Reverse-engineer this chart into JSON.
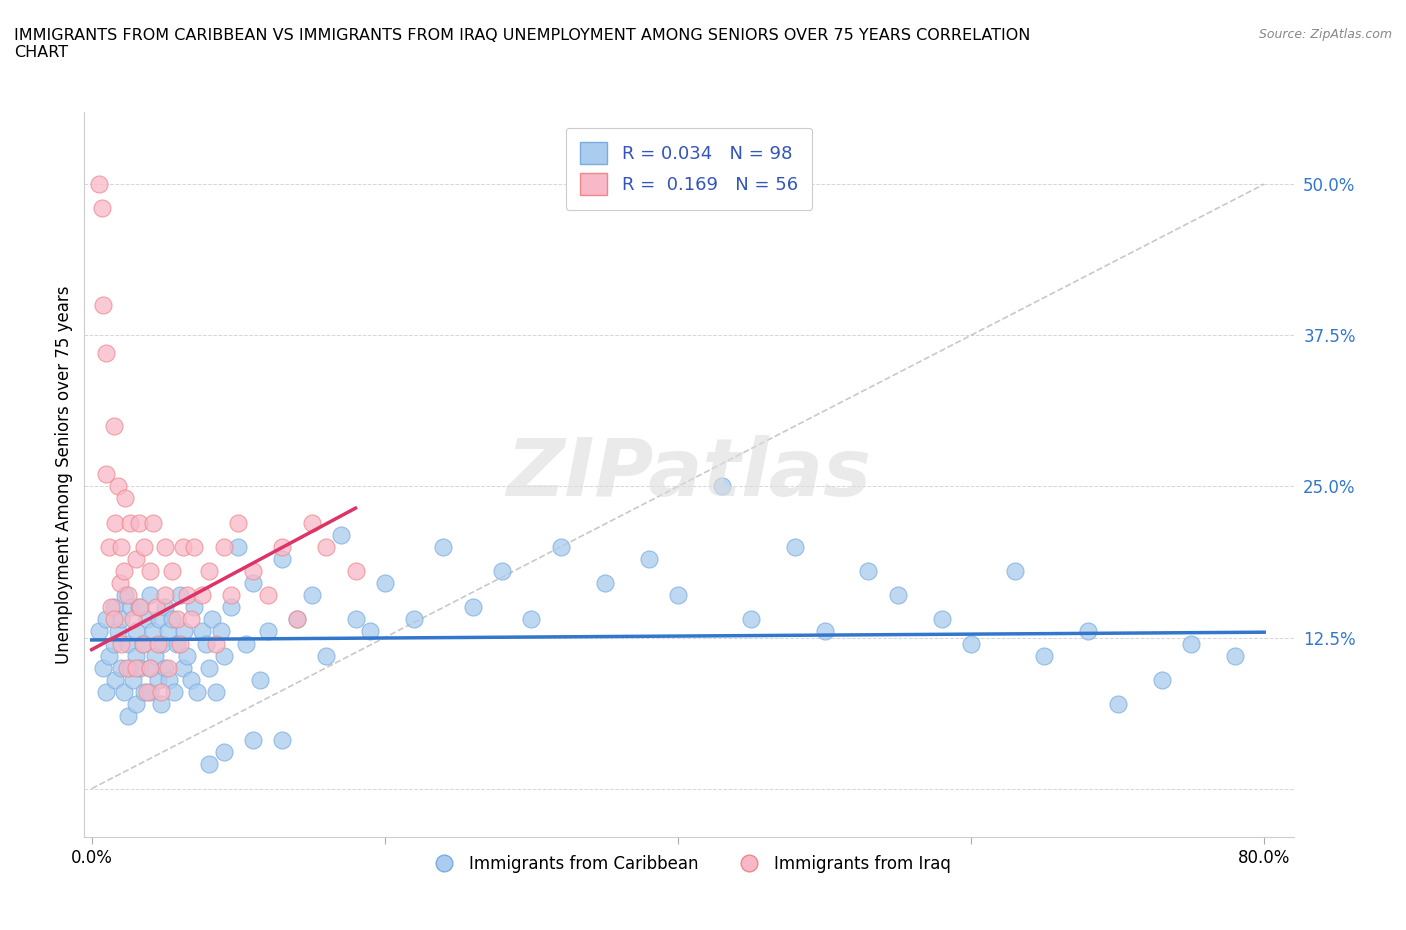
{
  "title": "IMMIGRANTS FROM CARIBBEAN VS IMMIGRANTS FROM IRAQ UNEMPLOYMENT AMONG SENIORS OVER 75 YEARS CORRELATION\nCHART",
  "source": "Source: ZipAtlas.com",
  "ylabel": "Unemployment Among Seniors over 75 years",
  "xlim": [
    -0.005,
    0.82
  ],
  "ylim": [
    -0.04,
    0.56
  ],
  "xticks": [
    0.0,
    0.8
  ],
  "xticklabels": [
    "0.0%",
    "80.0%"
  ],
  "yticks": [
    0.0,
    0.125,
    0.25,
    0.375,
    0.5
  ],
  "yticklabels": [
    "",
    "12.5%",
    "25.0%",
    "37.5%",
    "50.0%"
  ],
  "caribbean_color": "#aaccee",
  "iraq_color": "#f8b8c8",
  "caribbean_edge": "#7aace0",
  "iraq_edge": "#ee8888",
  "trend_caribbean_color": "#3377cc",
  "trend_iraq_color": "#dd3366",
  "R_caribbean": 0.034,
  "N_caribbean": 98,
  "R_iraq": 0.169,
  "N_iraq": 56,
  "legend_text_color": "#3355bb",
  "yaxis_label_color": "#3377cc",
  "background_color": "#ffffff",
  "watermark": "ZIPatlas",
  "carib_x": [
    0.005,
    0.008,
    0.01,
    0.01,
    0.012,
    0.015,
    0.015,
    0.016,
    0.018,
    0.02,
    0.02,
    0.022,
    0.023,
    0.025,
    0.025,
    0.026,
    0.027,
    0.028,
    0.03,
    0.03,
    0.03,
    0.032,
    0.033,
    0.035,
    0.036,
    0.038,
    0.04,
    0.04,
    0.04,
    0.042,
    0.043,
    0.045,
    0.046,
    0.047,
    0.048,
    0.05,
    0.05,
    0.052,
    0.053,
    0.055,
    0.056,
    0.058,
    0.06,
    0.062,
    0.063,
    0.065,
    0.068,
    0.07,
    0.072,
    0.075,
    0.078,
    0.08,
    0.082,
    0.085,
    0.088,
    0.09,
    0.095,
    0.1,
    0.105,
    0.11,
    0.115,
    0.12,
    0.13,
    0.14,
    0.15,
    0.16,
    0.17,
    0.18,
    0.19,
    0.2,
    0.22,
    0.24,
    0.26,
    0.28,
    0.3,
    0.32,
    0.35,
    0.38,
    0.4,
    0.43,
    0.45,
    0.48,
    0.5,
    0.53,
    0.55,
    0.58,
    0.6,
    0.63,
    0.65,
    0.68,
    0.7,
    0.73,
    0.75,
    0.78,
    0.08,
    0.09,
    0.11,
    0.13
  ],
  "carib_y": [
    0.13,
    0.1,
    0.14,
    0.08,
    0.11,
    0.12,
    0.15,
    0.09,
    0.13,
    0.1,
    0.14,
    0.08,
    0.16,
    0.12,
    0.06,
    0.1,
    0.15,
    0.09,
    0.13,
    0.11,
    0.07,
    0.15,
    0.1,
    0.12,
    0.08,
    0.14,
    0.16,
    0.1,
    0.08,
    0.13,
    0.11,
    0.09,
    0.14,
    0.07,
    0.12,
    0.15,
    0.1,
    0.13,
    0.09,
    0.14,
    0.08,
    0.12,
    0.16,
    0.1,
    0.13,
    0.11,
    0.09,
    0.15,
    0.08,
    0.13,
    0.12,
    0.1,
    0.14,
    0.08,
    0.13,
    0.11,
    0.15,
    0.2,
    0.12,
    0.17,
    0.09,
    0.13,
    0.19,
    0.14,
    0.16,
    0.11,
    0.21,
    0.14,
    0.13,
    0.17,
    0.14,
    0.2,
    0.15,
    0.18,
    0.14,
    0.2,
    0.17,
    0.19,
    0.16,
    0.25,
    0.14,
    0.2,
    0.13,
    0.18,
    0.16,
    0.14,
    0.12,
    0.18,
    0.11,
    0.13,
    0.07,
    0.09,
    0.12,
    0.11,
    0.02,
    0.03,
    0.04,
    0.04
  ],
  "iraq_x": [
    0.005,
    0.007,
    0.008,
    0.01,
    0.01,
    0.012,
    0.013,
    0.015,
    0.015,
    0.016,
    0.018,
    0.019,
    0.02,
    0.02,
    0.022,
    0.023,
    0.024,
    0.025,
    0.026,
    0.028,
    0.03,
    0.03,
    0.032,
    0.033,
    0.035,
    0.036,
    0.038,
    0.04,
    0.04,
    0.042,
    0.044,
    0.045,
    0.047,
    0.05,
    0.05,
    0.052,
    0.055,
    0.058,
    0.06,
    0.062,
    0.065,
    0.068,
    0.07,
    0.075,
    0.08,
    0.085,
    0.09,
    0.095,
    0.1,
    0.11,
    0.12,
    0.13,
    0.14,
    0.15,
    0.16,
    0.18
  ],
  "iraq_y": [
    0.5,
    0.48,
    0.4,
    0.36,
    0.26,
    0.2,
    0.15,
    0.3,
    0.14,
    0.22,
    0.25,
    0.17,
    0.2,
    0.12,
    0.18,
    0.24,
    0.1,
    0.16,
    0.22,
    0.14,
    0.19,
    0.1,
    0.22,
    0.15,
    0.12,
    0.2,
    0.08,
    0.18,
    0.1,
    0.22,
    0.15,
    0.12,
    0.08,
    0.16,
    0.2,
    0.1,
    0.18,
    0.14,
    0.12,
    0.2,
    0.16,
    0.14,
    0.2,
    0.16,
    0.18,
    0.12,
    0.2,
    0.16,
    0.22,
    0.18,
    0.16,
    0.2,
    0.14,
    0.22,
    0.2,
    0.18
  ]
}
